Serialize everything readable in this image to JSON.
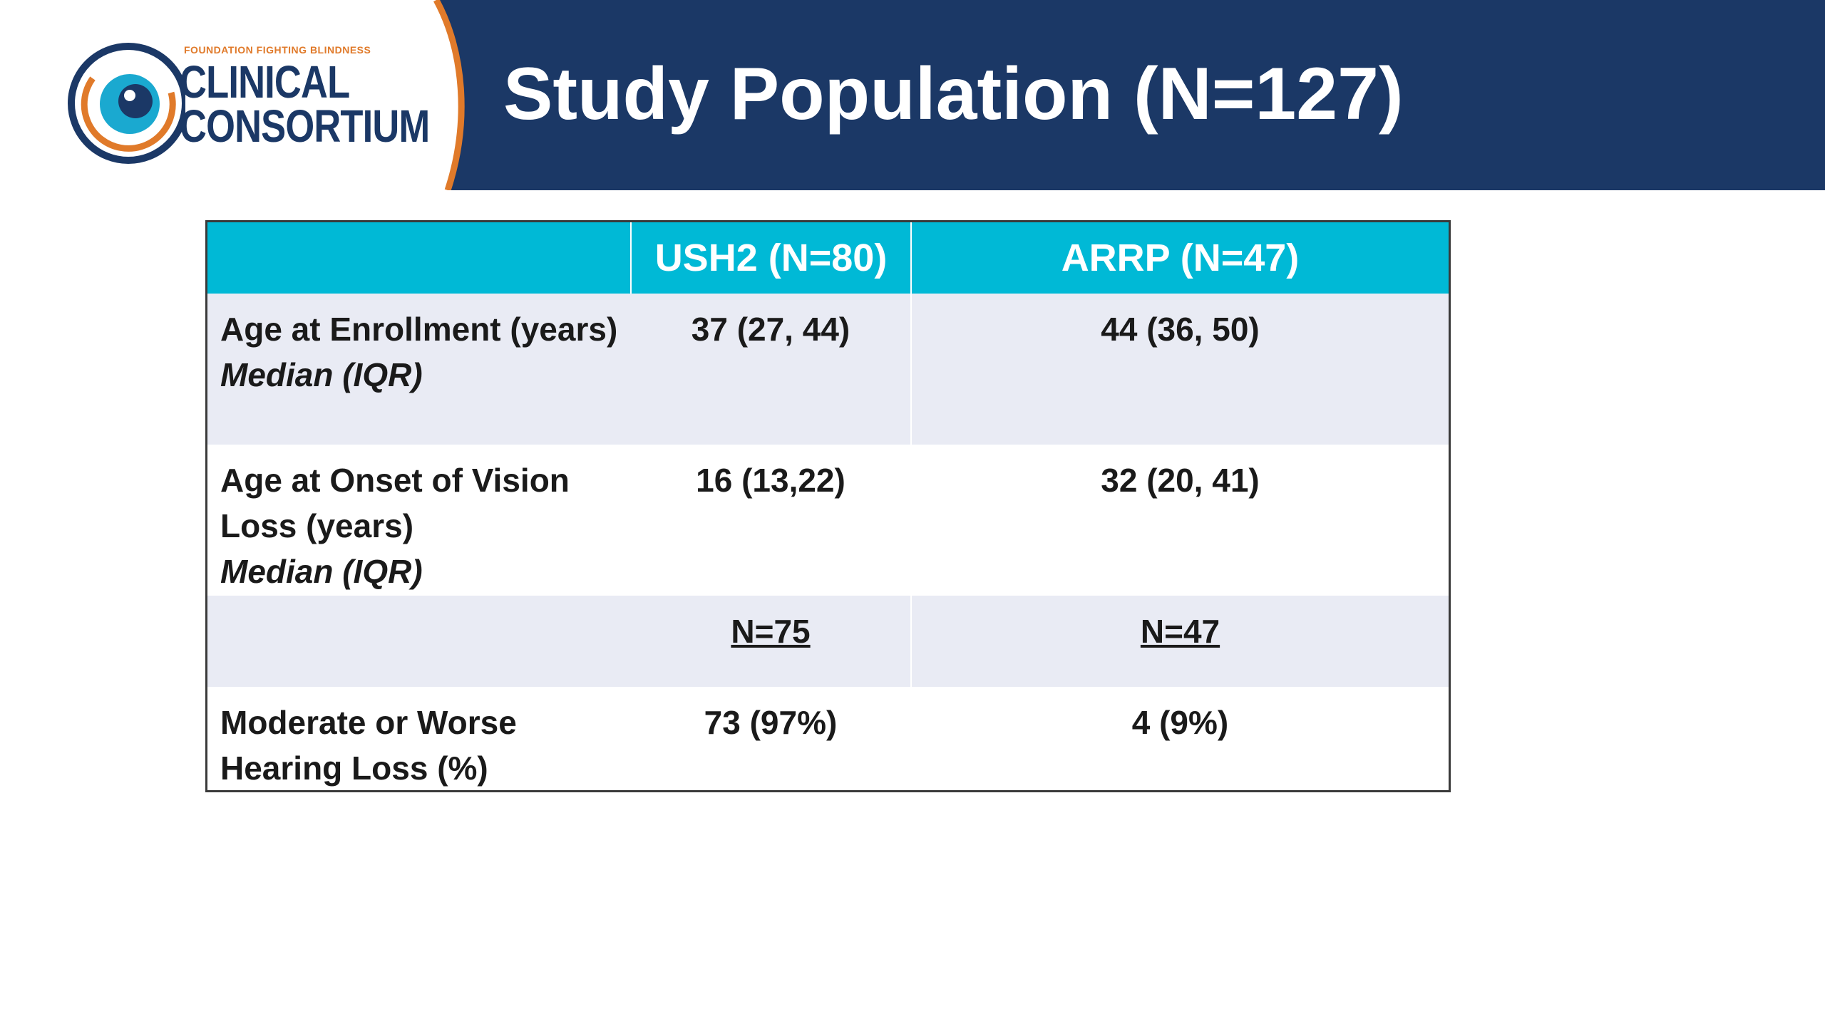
{
  "logo": {
    "top_line": "FOUNDATION FIGHTING BLINDNESS",
    "line1": "CLINICAL",
    "line2": "CONSORTIUM",
    "colors": {
      "orange": "#e07a2a",
      "navy": "#1b3866",
      "cyan": "#1aa9d0"
    }
  },
  "header": {
    "title": "Study Population (N=127)",
    "band_color": "#1b3866"
  },
  "table": {
    "header_color": "#00b9d6",
    "columns": [
      "",
      "USH2 (N=80)",
      "ARRP (N=47)"
    ],
    "rows": [
      {
        "label": "Age at Enrollment (years)",
        "sublabel": "Median (IQR)",
        "ush2": "37 (27, 44)",
        "arrp": "44 (36, 50)"
      },
      {
        "label": "Age at Onset of Vision Loss (years)",
        "sublabel": "Median (IQR)",
        "ush2": "16 (13,22)",
        "arrp": "32 (20, 41)"
      },
      {
        "label": "",
        "sublabel": "",
        "ush2": "N=75",
        "arrp": "N=47"
      },
      {
        "label": "Moderate or Worse Hearing Loss (%)",
        "sublabel": "",
        "ush2": "73 (97%)",
        "arrp": "4 (9%)"
      }
    ]
  }
}
